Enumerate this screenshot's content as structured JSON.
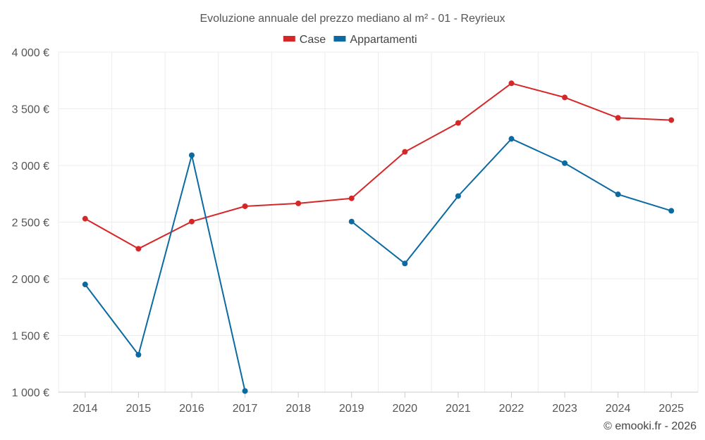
{
  "chart_data": {
    "type": "line",
    "title": "Evoluzione annuale del prezzo mediano al m² - 01 - Reyrieux",
    "categories": [
      "2014",
      "2015",
      "2016",
      "2017",
      "2018",
      "2019",
      "2020",
      "2021",
      "2022",
      "2023",
      "2024",
      "2025"
    ],
    "series": [
      {
        "name": "Case",
        "color": "#d62728",
        "values": [
          2530,
          2265,
          2505,
          2640,
          2665,
          2710,
          3120,
          3375,
          3725,
          3600,
          3420,
          3400
        ]
      },
      {
        "name": "Appartamenti",
        "color": "#0b6aa2",
        "values": [
          1950,
          1330,
          3090,
          1010,
          null,
          2505,
          2135,
          2730,
          3235,
          3020,
          2745,
          2600
        ]
      }
    ],
    "ylim": [
      1000,
      4000
    ],
    "yticks": [
      1000,
      1500,
      2000,
      2500,
      3000,
      3500,
      4000
    ],
    "ytick_labels": [
      "1 000 €",
      "1 500 €",
      "2 000 €",
      "2 500 €",
      "3 000 €",
      "3 500 €",
      "4 000 €"
    ],
    "xlabel": "",
    "ylabel": "",
    "grid": true,
    "legend_position": "top-center"
  },
  "credit": "© emooki.fr - 2026"
}
